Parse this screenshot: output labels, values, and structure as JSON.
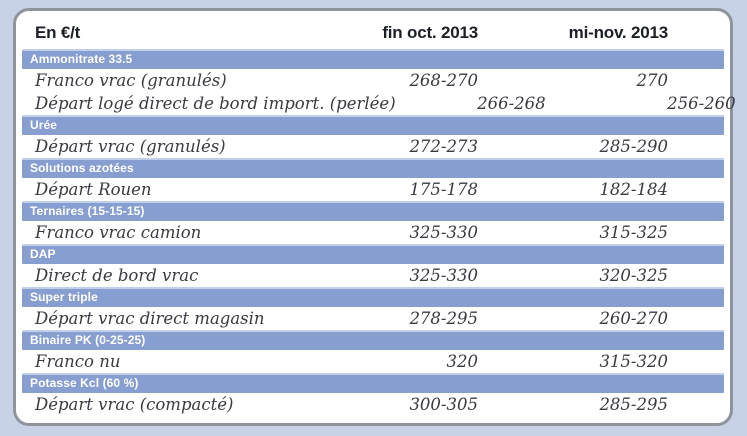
{
  "table": {
    "unit_label": "En €/t",
    "columns": [
      "fin oct. 2013",
      "mi-nov. 2013"
    ],
    "sections": [
      {
        "name": "Ammonitrate 33.5",
        "rows": [
          {
            "label": "Franco vrac (granulés)",
            "fin_oct": "268-270",
            "mi_nov": "270"
          },
          {
            "label": "Départ logé direct de bord import. (perlée)",
            "fin_oct": "266-268",
            "mi_nov": "256-260"
          }
        ]
      },
      {
        "name": "Urée",
        "rows": [
          {
            "label": "Départ vrac (granulés)",
            "fin_oct": "272-273",
            "mi_nov": "285-290"
          }
        ]
      },
      {
        "name": "Solutions azotées",
        "rows": [
          {
            "label": "Départ Rouen",
            "fin_oct": "175-178",
            "mi_nov": "182-184"
          }
        ]
      },
      {
        "name": "Ternaires (15-15-15)",
        "rows": [
          {
            "label": "Franco vrac camion",
            "fin_oct": "325-330",
            "mi_nov": "315-325"
          }
        ]
      },
      {
        "name": "DAP",
        "rows": [
          {
            "label": "Direct de bord vrac",
            "fin_oct": "325-330",
            "mi_nov": "320-325"
          }
        ]
      },
      {
        "name": "Super triple",
        "rows": [
          {
            "label": "Départ vrac direct magasin",
            "fin_oct": "278-295",
            "mi_nov": "260-270"
          }
        ]
      },
      {
        "name": "Binaire PK (0-25-25)",
        "rows": [
          {
            "label": "Franco nu",
            "fin_oct": "320",
            "mi_nov": "315-320"
          }
        ]
      },
      {
        "name": "Potasse Kcl (60 %)",
        "rows": [
          {
            "label": "Départ vrac (compacté)",
            "fin_oct": "300-305",
            "mi_nov": "285-295"
          }
        ]
      }
    ]
  },
  "colors": {
    "page_bg": "#c8d2e6",
    "card_bg": "#ffffff",
    "card_border": "#8f939b",
    "band_blue": "#879ed0",
    "band_highlight": "#c2cfe9",
    "heading_text": "#1d1f27",
    "body_text": "#3a3a41"
  }
}
